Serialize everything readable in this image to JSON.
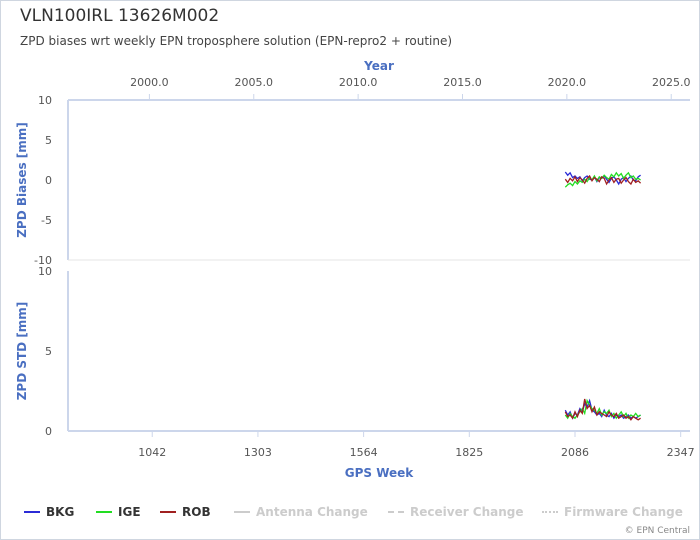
{
  "header": {
    "title": "VLN100IRL 13626M002",
    "subtitle": "ZPD biases wrt weekly EPN troposphere solution (EPN-repro2 + routine)"
  },
  "colors": {
    "axis_label": "#4a6fc1",
    "axis_line": "#ccd6eb",
    "tick_text": "#555555",
    "grid": "#e6e6e6"
  },
  "legend": [
    {
      "label": "BKG",
      "color": "#2b2bd6",
      "style": "solid",
      "disabled": false
    },
    {
      "label": "IGE",
      "color": "#22dd22",
      "style": "solid",
      "disabled": false
    },
    {
      "label": "ROB",
      "color": "#a02020",
      "style": "solid",
      "disabled": false
    },
    {
      "label": "Antenna Change",
      "color": "#cccccc",
      "style": "solid",
      "disabled": true
    },
    {
      "label": "Receiver Change",
      "color": "#cccccc",
      "style": "dashed",
      "disabled": true
    },
    {
      "label": "Firmware Change",
      "color": "#cccccc",
      "style": "dotted",
      "disabled": true
    }
  ],
  "credit": "© EPN Central",
  "chart_data": [
    {
      "type": "line",
      "panel": "top",
      "ylabel": "ZPD Biases [mm]",
      "ylim": [
        -10,
        10
      ],
      "yticks": [
        10,
        5,
        0,
        -5,
        -10
      ],
      "x_top_axis": {
        "label": "Year",
        "range": [
          1996.1,
          2025.9
        ],
        "ticks": [
          2000.0,
          2005.0,
          2010.0,
          2015.0,
          2020.0,
          2025.0
        ],
        "tick_labels": [
          "2000.0",
          "2005.0",
          "2010.0",
          "2015.0",
          "2020.0",
          "2025.0"
        ]
      },
      "x": [
        2062,
        2068,
        2074,
        2080,
        2086,
        2092,
        2098,
        2104,
        2110,
        2116,
        2122,
        2128,
        2134,
        2140,
        2146,
        2152,
        2158,
        2164,
        2170,
        2176,
        2182,
        2188,
        2194,
        2200,
        2206,
        2212,
        2218,
        2224,
        2230,
        2236,
        2242,
        2248
      ],
      "series": [
        {
          "name": "BKG",
          "values": [
            1.0,
            0.6,
            0.9,
            0.3,
            0.5,
            0.2,
            0.4,
            -0.1,
            0.3,
            0.5,
            0.1,
            0.0,
            0.4,
            -0.2,
            0.3,
            0.2,
            0.5,
            0.1,
            -0.3,
            0.2,
            0.4,
            0.0,
            -0.5,
            0.1,
            0.3,
            -0.2,
            0.2,
            0.5,
            0.0,
            -0.1,
            0.4,
            0.6
          ]
        },
        {
          "name": "IGE",
          "values": [
            -0.9,
            -0.6,
            -0.4,
            -0.7,
            -0.2,
            -0.5,
            -0.1,
            -0.3,
            0.1,
            -0.2,
            0.3,
            0.0,
            0.5,
            -0.1,
            0.4,
            0.2,
            0.6,
            0.3,
            0.1,
            0.7,
            0.4,
            0.9,
            0.5,
            0.8,
            0.2,
            0.6,
            0.9,
            0.3,
            0.5,
            0.1,
            0.2,
            0.0
          ]
        },
        {
          "name": "ROB",
          "values": [
            0.1,
            -0.3,
            0.2,
            -0.1,
            0.4,
            -0.2,
            0.3,
            0.0,
            -0.4,
            0.2,
            0.5,
            -0.1,
            0.3,
            0.1,
            -0.2,
            0.4,
            0.2,
            -0.5,
            0.0,
            0.3,
            -0.3,
            0.1,
            0.2,
            -0.4,
            0.0,
            0.3,
            -0.2,
            -0.5,
            0.1,
            -0.3,
            -0.1,
            -0.4
          ]
        }
      ]
    },
    {
      "type": "line",
      "panel": "bottom",
      "ylabel": "ZPD STD [mm]",
      "xlabel": "GPS Week",
      "ylim": [
        0,
        10
      ],
      "yticks": [
        10,
        5,
        0
      ],
      "xlim": [
        834,
        2370
      ],
      "xticks": [
        1042,
        1303,
        1564,
        1825,
        2086,
        2347
      ],
      "x": [
        2062,
        2068,
        2074,
        2080,
        2086,
        2092,
        2098,
        2104,
        2110,
        2116,
        2122,
        2128,
        2134,
        2140,
        2146,
        2152,
        2158,
        2164,
        2170,
        2176,
        2182,
        2188,
        2194,
        2200,
        2206,
        2212,
        2218,
        2224,
        2230,
        2236,
        2242,
        2248
      ],
      "series": [
        {
          "name": "BKG",
          "values": [
            1.3,
            1.0,
            1.2,
            0.8,
            1.1,
            1.0,
            1.4,
            1.2,
            1.7,
            1.5,
            1.9,
            1.3,
            1.2,
            1.0,
            1.1,
            0.9,
            1.3,
            1.0,
            0.9,
            1.1,
            0.8,
            1.0,
            0.9,
            1.0,
            0.8,
            0.9,
            1.0,
            0.8,
            0.9,
            0.8,
            0.9,
            1.0
          ]
        },
        {
          "name": "IGE",
          "values": [
            1.0,
            0.8,
            1.1,
            0.9,
            0.8,
            1.0,
            1.2,
            1.4,
            1.1,
            1.9,
            1.6,
            1.4,
            1.3,
            1.1,
            1.4,
            1.0,
            1.2,
            1.1,
            1.3,
            0.9,
            1.1,
            0.8,
            1.0,
            1.2,
            0.9,
            1.1,
            0.8,
            1.0,
            0.9,
            1.1,
            0.9,
            1.0
          ]
        },
        {
          "name": "ROB",
          "values": [
            1.2,
            0.9,
            1.0,
            0.8,
            1.2,
            0.9,
            1.3,
            1.1,
            2.0,
            1.4,
            1.6,
            1.2,
            1.5,
            1.0,
            1.2,
            1.1,
            1.0,
            0.9,
            1.2,
            1.0,
            0.9,
            1.1,
            0.8,
            0.9,
            1.0,
            0.8,
            0.9,
            0.7,
            0.9,
            0.8,
            0.7,
            0.8
          ]
        }
      ]
    }
  ]
}
